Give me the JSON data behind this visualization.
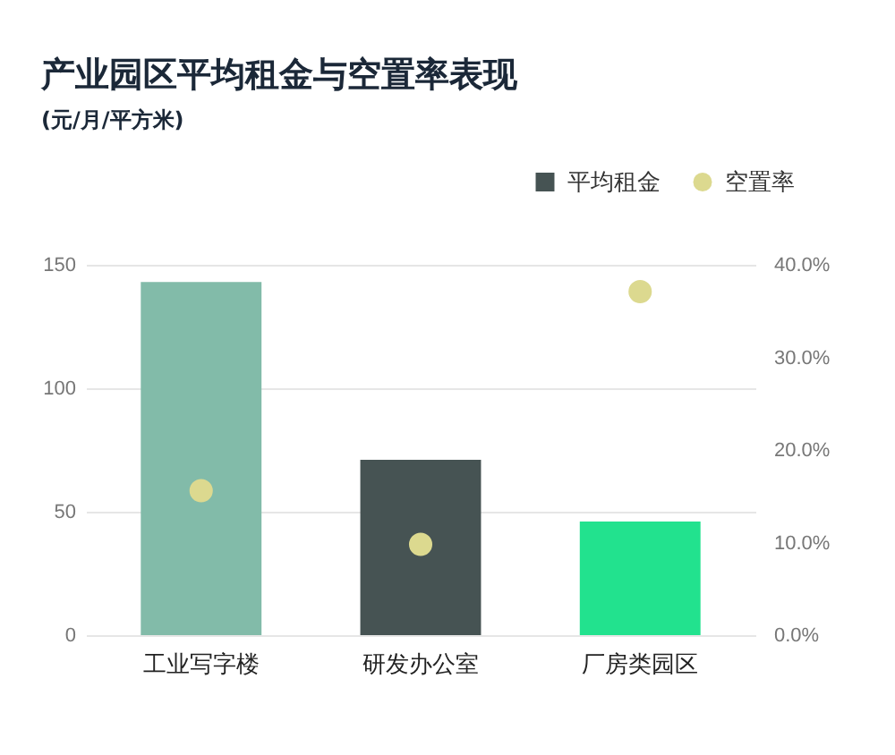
{
  "chart_data": {
    "type": "bar",
    "title": "产业园区平均租金与空置率表现",
    "subtitle": "(元/月/平方米)",
    "categories": [
      "工业写字楼",
      "研发办公室",
      "厂房类园区"
    ],
    "series": [
      {
        "name": "平均租金",
        "color": "#465353",
        "colors": [
          "#82bba9",
          "#465353",
          "#22e28e"
        ],
        "values": [
          143,
          71,
          46
        ]
      },
      {
        "name": "空置率",
        "type": "scatter",
        "axis": "y2",
        "marker": "circle",
        "color": "#dcd98f",
        "values": [
          15.6,
          9.8,
          37.1
        ]
      }
    ],
    "ylim": [
      0,
      150
    ],
    "yticks": [
      0,
      50,
      100,
      150
    ],
    "y2lim": [
      0,
      40
    ],
    "y2ticks": [
      {
        "value": 0,
        "label": "0.0%"
      },
      {
        "value": 10,
        "label": "10.0%"
      },
      {
        "value": 20,
        "label": "20.0%"
      },
      {
        "value": 30,
        "label": "30.0%"
      },
      {
        "value": 40,
        "label": "40.0%"
      }
    ],
    "grid": "y",
    "legend": "top right"
  }
}
